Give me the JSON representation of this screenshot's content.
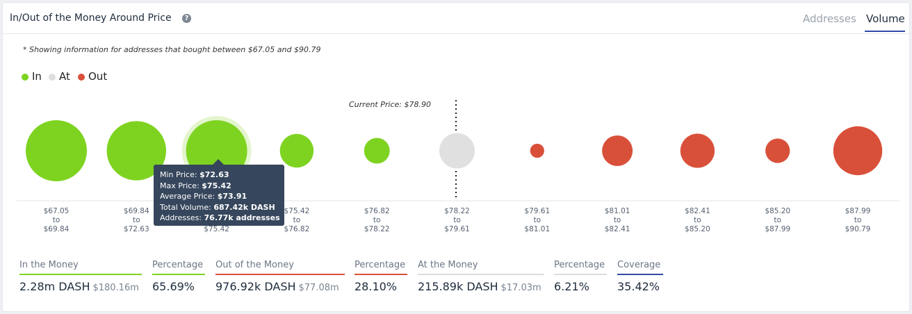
{
  "header": {
    "title": "In/Out of the Money Around Price",
    "tabs": [
      {
        "label": "Addresses",
        "active": false
      },
      {
        "label": "Volume",
        "active": true
      }
    ]
  },
  "note": "* Showing information for addresses that bought between $67.05 and $90.79",
  "legend": [
    {
      "label": "In",
      "color": "#7ed321"
    },
    {
      "label": "At",
      "color": "#dedede"
    },
    {
      "label": "Out",
      "color": "#d9503a"
    }
  ],
  "current_price_label": "Current Price: $78.90",
  "chart_data": {
    "type": "bubble",
    "current_price": 78.9,
    "clusters": [
      {
        "from": "$67.05",
        "to_word": "to",
        "to": "$69.84",
        "status": "in",
        "relative_size": 1.0
      },
      {
        "from": "$69.84",
        "to_word": "to",
        "to": "$72.63",
        "status": "in",
        "relative_size": 0.97
      },
      {
        "from": "$72.63",
        "to_word": "to",
        "to": "$75.42",
        "status": "in",
        "relative_size": 1.0,
        "highlighted": true
      },
      {
        "from": "$75.42",
        "to_word": "to",
        "to": "$76.82",
        "status": "in",
        "relative_size": 0.55
      },
      {
        "from": "$76.82",
        "to_word": "to",
        "to": "$78.22",
        "status": "in",
        "relative_size": 0.42
      },
      {
        "from": "$78.22",
        "to_word": "to",
        "to": "$79.61",
        "status": "at",
        "relative_size": 0.58
      },
      {
        "from": "$79.61",
        "to_word": "to",
        "to": "$81.01",
        "status": "out",
        "relative_size": 0.23
      },
      {
        "from": "$81.01",
        "to_word": "to",
        "to": "$82.41",
        "status": "out",
        "relative_size": 0.5
      },
      {
        "from": "$82.41",
        "to_word": "to",
        "to": "$85.20",
        "status": "out",
        "relative_size": 0.56
      },
      {
        "from": "$85.20",
        "to_word": "to",
        "to": "$87.99",
        "status": "out",
        "relative_size": 0.4
      },
      {
        "from": "$87.99",
        "to_word": "to",
        "to": "$90.79",
        "status": "out",
        "relative_size": 0.8
      }
    ],
    "colors": {
      "in": "#7ed321",
      "at": "#e0e0e0",
      "out": "#d9503a"
    }
  },
  "tooltip": {
    "rows": [
      {
        "label": "Min Price: ",
        "value": "$72.63"
      },
      {
        "label": "Max Price: ",
        "value": "$75.42"
      },
      {
        "label": "Average Price: ",
        "value": "$73.91"
      },
      {
        "label": "Total Volume: ",
        "value": "687.42k DASH"
      },
      {
        "label": "Addresses: ",
        "value": "76.77k addresses"
      }
    ]
  },
  "stats": {
    "in_money": {
      "label": "In the Money",
      "value": "2.28m DASH",
      "sub": "$180.16m",
      "color": "#7ed321"
    },
    "in_pct": {
      "label": "Percentage",
      "value": "65.69%",
      "color": "#7ed321"
    },
    "out_money": {
      "label": "Out of the Money",
      "value": "976.92k DASH",
      "sub": "$77.08m",
      "color": "#d9503a"
    },
    "out_pct": {
      "label": "Percentage",
      "value": "28.10%",
      "color": "#d9503a"
    },
    "at_money": {
      "label": "At the Money",
      "value": "215.89k DASH",
      "sub": "$17.03m",
      "color": "#dcdcdc"
    },
    "at_pct": {
      "label": "Percentage",
      "value": "6.21%",
      "color": "#dcdcdc"
    },
    "coverage": {
      "label": "Coverage",
      "value": "35.42%",
      "color": "#2f4aa8"
    }
  }
}
